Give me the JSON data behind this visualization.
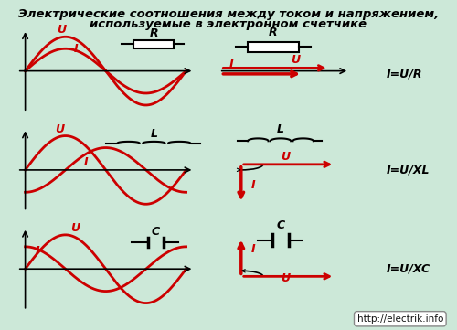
{
  "title_line1": "Электрические соотношения между током и напряжением,",
  "title_line2": "используемые в электронном счетчике",
  "bg_color": "#cce8d8",
  "title_color": "#000000",
  "wave_color": "#cc0000",
  "axis_color": "#000000",
  "label_color": "#cc0000",
  "formula_color": "#000000",
  "url_text": "http://electrik.info",
  "formulas": [
    "I=U/R",
    "I=U/XL",
    "I=U/XC"
  ],
  "component_labels": [
    "R",
    "L",
    "C"
  ]
}
